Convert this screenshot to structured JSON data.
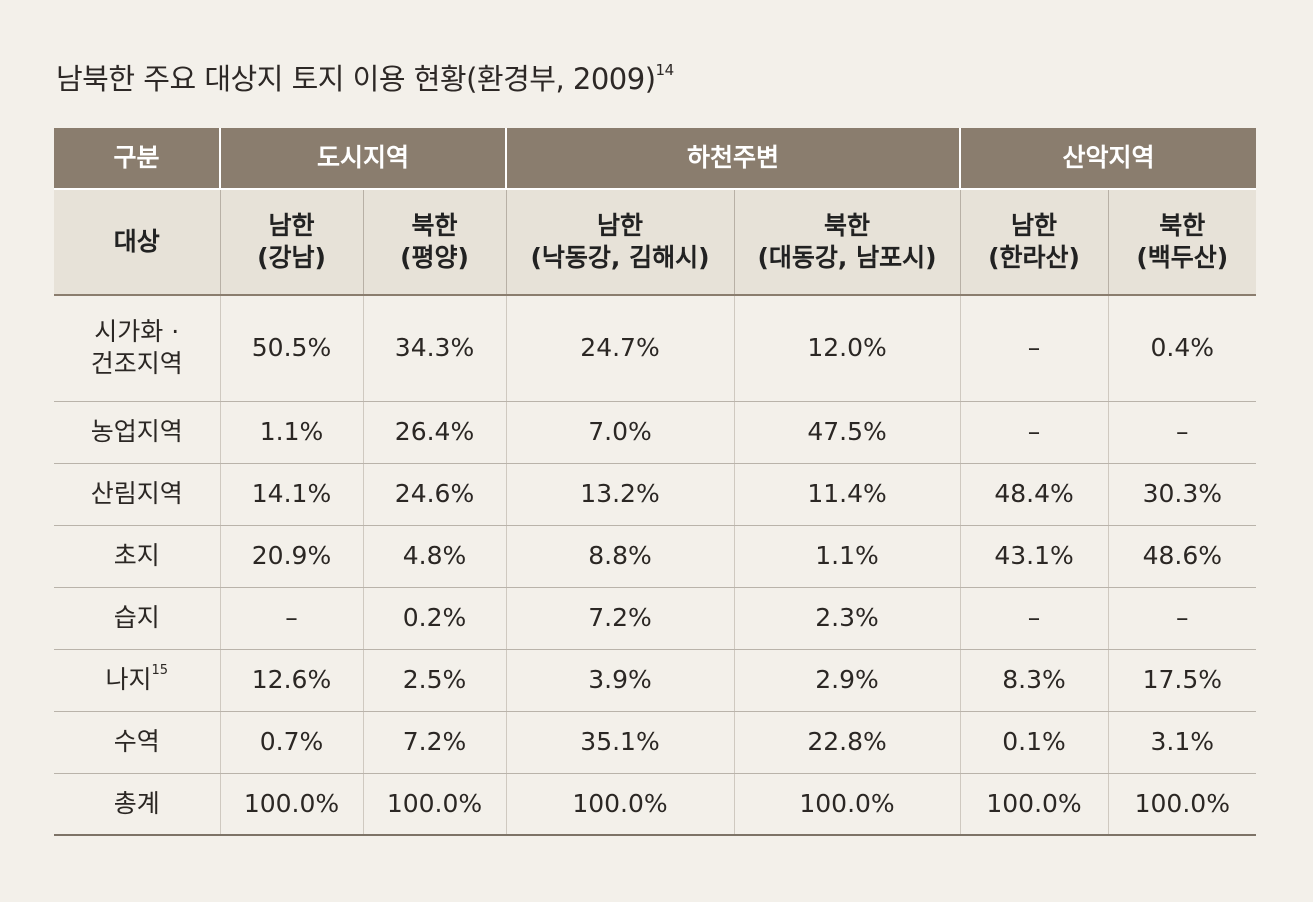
{
  "caption": {
    "text": "남북한 주요 대상지 토지 이용 현황(환경부, 2009)",
    "footnote": "14"
  },
  "header": {
    "group_label": "구분",
    "groups": [
      "도시지역",
      "하천주변",
      "산악지역"
    ],
    "target_label": "대상",
    "targets": [
      {
        "name": "남한",
        "sub": "(강남)"
      },
      {
        "name": "북한",
        "sub": "(평양)"
      },
      {
        "name": "남한",
        "sub": "(낙동강, 김해시)"
      },
      {
        "name": "북한",
        "sub": "(대동강, 남포시)"
      },
      {
        "name": "남한",
        "sub": "(한라산)"
      },
      {
        "name": "북한",
        "sub": "(백두산)"
      }
    ]
  },
  "rows": [
    {
      "label": "시가화 ·",
      "label2": "건조지역",
      "values": [
        "50.5%",
        "34.3%",
        "24.7%",
        "12.0%",
        "–",
        "0.4%"
      ]
    },
    {
      "label": "농업지역",
      "values": [
        "1.1%",
        "26.4%",
        "7.0%",
        "47.5%",
        "–",
        "–"
      ]
    },
    {
      "label": "산림지역",
      "values": [
        "14.1%",
        "24.6%",
        "13.2%",
        "11.4%",
        "48.4%",
        "30.3%"
      ]
    },
    {
      "label": "초지",
      "values": [
        "20.9%",
        "4.8%",
        "8.8%",
        "1.1%",
        "43.1%",
        "48.6%"
      ]
    },
    {
      "label": "습지",
      "values": [
        "–",
        "0.2%",
        "7.2%",
        "2.3%",
        "–",
        "–"
      ]
    },
    {
      "label": "나지",
      "footnote": "15",
      "values": [
        "12.6%",
        "2.5%",
        "3.9%",
        "2.9%",
        "8.3%",
        "17.5%"
      ]
    },
    {
      "label": "수역",
      "values": [
        "0.7%",
        "7.2%",
        "35.1%",
        "22.8%",
        "0.1%",
        "3.1%"
      ]
    },
    {
      "label": "총계",
      "values": [
        "100.0%",
        "100.0%",
        "100.0%",
        "100.0%",
        "100.0%",
        "100.0%"
      ]
    }
  ]
}
